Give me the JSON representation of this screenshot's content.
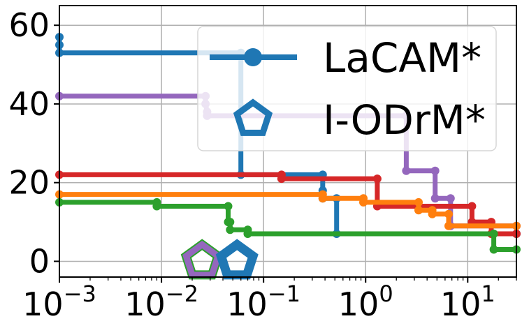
{
  "chart_data": {
    "type": "line",
    "x_scale": "log",
    "xlim": [
      0.001,
      30
    ],
    "ylim": [
      -4,
      65
    ],
    "grid": true,
    "legend_position": "top-right",
    "x_ticks": [
      {
        "value": 0.001,
        "base": "10",
        "exp": "−3"
      },
      {
        "value": 0.01,
        "base": "10",
        "exp": "−2"
      },
      {
        "value": 0.1,
        "base": "10",
        "exp": "−1"
      },
      {
        "value": 1,
        "base": "10",
        "exp": "0"
      },
      {
        "value": 10,
        "base": "10",
        "exp": "1"
      }
    ],
    "y_ticks": [
      {
        "value": 0,
        "label": "0"
      },
      {
        "value": 20,
        "label": "20"
      },
      {
        "value": 40,
        "label": "40"
      },
      {
        "value": 60,
        "label": "60"
      }
    ],
    "legend": [
      {
        "name": "LaCAM*",
        "color": "#1f77b4",
        "marker": "circle"
      },
      {
        "name": "I-ODrM*",
        "color": "#1f77b4",
        "marker": "pentagon"
      }
    ],
    "series": [
      {
        "color": "#1f77b4",
        "marker": "circle",
        "points": [
          [
            0.001,
            57
          ],
          [
            0.001,
            55
          ],
          [
            0.001,
            53
          ],
          [
            0.06,
            53
          ],
          [
            0.06,
            22
          ],
          [
            0.38,
            22
          ],
          [
            0.38,
            18
          ],
          [
            0.38,
            16
          ],
          [
            0.52,
            16
          ],
          [
            0.52,
            7
          ],
          [
            30,
            7
          ]
        ]
      },
      {
        "color": "#9467bd",
        "marker": "circle",
        "points": [
          [
            0.001,
            42
          ],
          [
            0.027,
            42
          ],
          [
            0.027,
            40
          ],
          [
            0.028,
            38
          ],
          [
            0.028,
            37
          ],
          [
            2.5,
            37
          ],
          [
            2.5,
            23
          ],
          [
            4.8,
            23
          ],
          [
            4.8,
            16
          ],
          [
            6.8,
            16
          ],
          [
            6.8,
            9
          ],
          [
            30,
            9
          ]
        ]
      },
      {
        "color": "#d62728",
        "marker": "circle",
        "points": [
          [
            0.001,
            22
          ],
          [
            0.15,
            22
          ],
          [
            0.15,
            21
          ],
          [
            1.3,
            21
          ],
          [
            1.3,
            14
          ],
          [
            11,
            14
          ],
          [
            11,
            10
          ],
          [
            17,
            10
          ],
          [
            17,
            7
          ],
          [
            30,
            7
          ]
        ]
      },
      {
        "color": "#ff7f0e",
        "marker": "circle",
        "points": [
          [
            0.001,
            17
          ],
          [
            0.38,
            17
          ],
          [
            0.38,
            16
          ],
          [
            0.95,
            16
          ],
          [
            0.95,
            15
          ],
          [
            3.3,
            15
          ],
          [
            3.3,
            13
          ],
          [
            4.5,
            13
          ],
          [
            4.5,
            12
          ],
          [
            6.5,
            12
          ],
          [
            6.5,
            9
          ],
          [
            30,
            9
          ]
        ]
      },
      {
        "color": "#2ca02c",
        "marker": "circle",
        "points": [
          [
            0.001,
            15
          ],
          [
            0.009,
            15
          ],
          [
            0.009,
            14
          ],
          [
            0.045,
            14
          ],
          [
            0.045,
            10
          ],
          [
            0.047,
            10
          ],
          [
            0.047,
            8
          ],
          [
            0.07,
            8
          ],
          [
            0.07,
            7
          ],
          [
            18,
            7
          ],
          [
            18,
            3
          ],
          [
            30,
            3
          ]
        ]
      }
    ],
    "failure_markers": [
      {
        "x": 0.025,
        "y": 0,
        "edge_color": "#9467bd",
        "inner_color": "#2ca02c"
      },
      {
        "x": 0.055,
        "y": 0,
        "edge_color": "#1f77b4",
        "inner_color": "#1f77b4"
      }
    ]
  }
}
